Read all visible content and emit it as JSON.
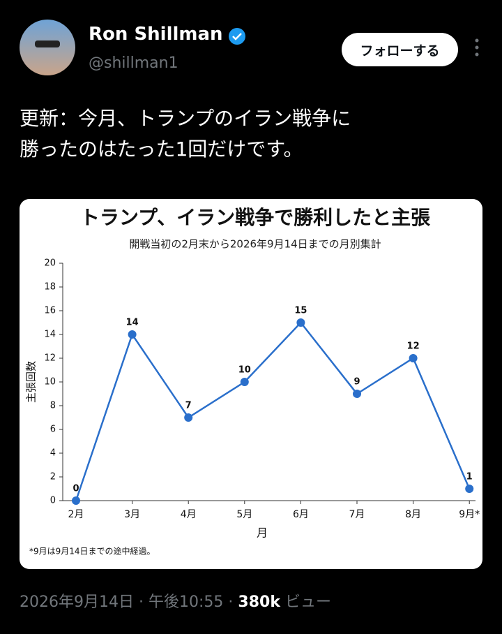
{
  "tweet": {
    "name": "Ron Shillman",
    "handle": "@shillman1",
    "follow": "フォローする",
    "text": [
      "更新：今月、トランプのイラン戦争に",
      "勝ったのはたった1回だけです。"
    ],
    "footer": {
      "date": "2026年9月14日",
      "separator": "·",
      "time": "午後10:55",
      "views": "380k",
      "views_label": "ビュー"
    }
  },
  "chart_data": {
    "type": "line",
    "title": "トランプ、イラン戦争で勝利したと主張",
    "subtitle": "開戦当初の2月末から2026年9月14日までの月別集計",
    "x_label": "月",
    "y_label": "主張回数",
    "note": "*9月は9月14日までの途中経過。",
    "categories": [
      "2月",
      "3月",
      "4月",
      "5月",
      "6月",
      "7月",
      "8月",
      "9月*"
    ],
    "values": [
      0,
      14,
      7,
      10,
      15,
      9,
      12,
      1
    ],
    "color": "#2a6fcb",
    "ylim": [
      0,
      20
    ],
    "yticks": [
      0,
      2,
      4,
      6,
      8,
      10,
      12,
      14,
      16,
      18,
      20
    ]
  }
}
